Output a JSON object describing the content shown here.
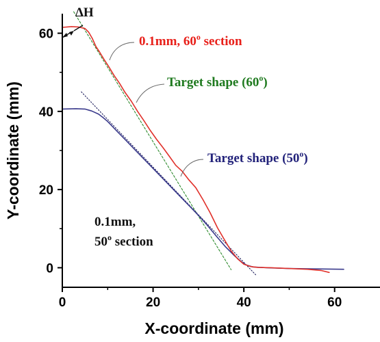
{
  "chart_data": {
    "type": "line",
    "xlabel": "X-coordinate (mm)",
    "ylabel": "Y-coordinate (mm)",
    "xlim": [
      0,
      70
    ],
    "ylim": [
      -5,
      65
    ],
    "xticks": [
      0,
      20,
      40,
      60
    ],
    "yticks": [
      0,
      20,
      40,
      60
    ],
    "grid": false,
    "colors": {
      "red_section": "#e0302a",
      "blue_section": "#3a3a8c",
      "target60": "#2e8b2e",
      "target50": "#1c1c5a",
      "annot_red": "#e8201a",
      "annot_green": "#1f7a1f",
      "annot_blue": "#22227a",
      "annot_dark": "#111111",
      "leader": "#666666"
    },
    "series": [
      {
        "key": "red_section",
        "style": "solid",
        "points": [
          [
            0,
            61.5
          ],
          [
            2,
            61.7
          ],
          [
            3.5,
            61.6
          ],
          [
            5,
            61.2
          ],
          [
            5.8,
            60.3
          ],
          [
            6.6,
            58.7
          ],
          [
            7.4,
            56.6
          ],
          [
            8.2,
            55.2
          ],
          [
            9.2,
            53.3
          ],
          [
            10.2,
            51.5
          ],
          [
            11.4,
            49.2
          ],
          [
            12.6,
            47.2
          ],
          [
            13.8,
            44.9
          ],
          [
            15.2,
            42.6
          ],
          [
            16.6,
            40.0
          ],
          [
            18,
            37.6
          ],
          [
            19.4,
            35.1
          ],
          [
            20.8,
            32.8
          ],
          [
            22.2,
            30.7
          ],
          [
            23.6,
            28.5
          ],
          [
            25,
            26.2
          ],
          [
            26.4,
            24.7
          ],
          [
            27.8,
            22.6
          ],
          [
            29.4,
            20.5
          ],
          [
            31,
            17.4
          ],
          [
            32.6,
            14.0
          ],
          [
            34.2,
            10.2
          ],
          [
            35.8,
            7.0
          ],
          [
            37.2,
            4.3
          ],
          [
            38.6,
            2.3
          ],
          [
            40,
            0.9
          ],
          [
            41.5,
            0.3
          ],
          [
            43,
            0.1
          ],
          [
            46,
            0
          ],
          [
            50,
            -0.2
          ],
          [
            54,
            -0.4
          ],
          [
            57,
            -0.7
          ],
          [
            58.8,
            -1.2
          ]
        ]
      },
      {
        "key": "blue_section",
        "style": "solid",
        "points": [
          [
            0,
            40.6
          ],
          [
            3,
            40.7
          ],
          [
            5,
            40.6
          ],
          [
            6.5,
            40.1
          ],
          [
            8,
            39.3
          ],
          [
            9,
            38.4
          ],
          [
            10,
            37.4
          ],
          [
            12,
            35.0
          ],
          [
            14,
            32.6
          ],
          [
            16,
            30.2
          ],
          [
            18,
            27.8
          ],
          [
            20,
            25.4
          ],
          [
            22,
            23.0
          ],
          [
            24,
            20.6
          ],
          [
            26,
            18.2
          ],
          [
            28,
            15.8
          ],
          [
            30,
            13.4
          ],
          [
            32,
            10.8
          ],
          [
            34,
            8.0
          ],
          [
            36,
            5.3
          ],
          [
            38,
            3.0
          ],
          [
            39.5,
            1.5
          ],
          [
            40.5,
            0.7
          ],
          [
            42,
            0.2
          ],
          [
            45,
            0
          ],
          [
            50,
            -0.2
          ],
          [
            55,
            -0.3
          ],
          [
            62,
            -0.4
          ]
        ]
      },
      {
        "key": "target60",
        "style": "dashed",
        "points": [
          [
            2.5,
            65.5
          ],
          [
            37.2,
            -0.5
          ]
        ]
      },
      {
        "key": "target50",
        "style": "dotted",
        "points": [
          [
            4.2,
            45.0
          ],
          [
            42.6,
            -1.8
          ]
        ]
      }
    ]
  },
  "annotations": {
    "delta_h": "ΔH",
    "red_label": {
      "main": "0.1mm, 60",
      "sup": "o",
      "rest": " section"
    },
    "green_label": {
      "main": "Target shape (60",
      "sup": "o",
      "rest": ")"
    },
    "blue_label": {
      "main": "Target shape (50",
      "sup": "o",
      "rest": ")"
    },
    "dark_label_line1": "0.1mm,",
    "dark_label_line2": {
      "main": "50",
      "sup": "o",
      "rest": " section"
    }
  }
}
